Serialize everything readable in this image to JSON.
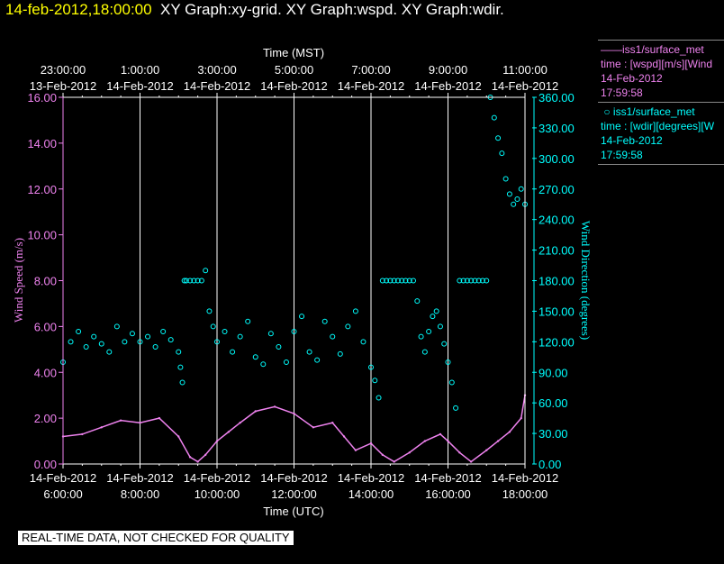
{
  "title": {
    "timestamp": "14-feb-2012,18:00:00",
    "graphs": "XY Graph:xy-grid.  XY Graph:wspd.  XY Graph:wdir."
  },
  "legend": {
    "wspd": {
      "name": "iss1/surface_met",
      "desc": "time : [wspd][m/s][Wind",
      "date": "14-Feb-2012",
      "time": "17:59:58",
      "color": "#ee82ee"
    },
    "wdir": {
      "name": "iss1/surface_met",
      "desc": "time : [wdir][degrees][W",
      "date": "14-Feb-2012",
      "time": "17:59:58",
      "color": "#00ffff"
    }
  },
  "quality_note": "REAL-TIME DATA, NOT CHECKED FOR QUALITY",
  "chart_data": {
    "type": "scatter",
    "top_axis_label": "Time (MST)",
    "bottom_axis_label": "Time (UTC)",
    "ylabel_left": "Wind Speed (m/s)",
    "ylabel_right": "Wind Direction (degrees)",
    "xlim_utc_hours": [
      6,
      18
    ],
    "ylim_left": [
      0,
      16
    ],
    "ylim_right": [
      0,
      360
    ],
    "bottom_ticks": [
      {
        "date": "14-Feb-2012",
        "time": "6:00:00"
      },
      {
        "date": "14-Feb-2012",
        "time": "8:00:00"
      },
      {
        "date": "14-Feb-2012",
        "time": "10:00:00"
      },
      {
        "date": "14-Feb-2012",
        "time": "12:00:00"
      },
      {
        "date": "14-Feb-2012",
        "time": "14:00:00"
      },
      {
        "date": "14-Feb-2012",
        "time": "16:00:00"
      },
      {
        "date": "14-Feb-2012",
        "time": "18:00:00"
      }
    ],
    "top_ticks": [
      {
        "date": "13-Feb-2012",
        "time": "23:00:00"
      },
      {
        "date": "14-Feb-2012",
        "time": "1:00:00"
      },
      {
        "date": "14-Feb-2012",
        "time": "3:00:00"
      },
      {
        "date": "14-Feb-2012",
        "time": "5:00:00"
      },
      {
        "date": "14-Feb-2012",
        "time": "7:00:00"
      },
      {
        "date": "14-Feb-2012",
        "time": "9:00:00"
      },
      {
        "date": "14-Feb-2012",
        "time": "11:00:00"
      }
    ],
    "left_ticks": [
      "0.00",
      "2.00",
      "4.00",
      "6.00",
      "8.00",
      "10.00",
      "12.00",
      "14.00",
      "16.00"
    ],
    "right_ticks": [
      "0.00",
      "30.00",
      "60.00",
      "90.00",
      "120.00",
      "150.00",
      "180.00",
      "210.00",
      "240.00",
      "270.00",
      "300.00",
      "330.00",
      "360.00"
    ],
    "grid": "vertical",
    "series": [
      {
        "name": "wspd",
        "color": "#ee82ee",
        "style": "line",
        "x_utc_hours": [
          6.0,
          6.5,
          7.0,
          7.5,
          8.0,
          8.5,
          9.0,
          9.3,
          9.5,
          9.7,
          10.0,
          10.3,
          10.6,
          11.0,
          11.5,
          12.0,
          12.5,
          13.0,
          13.3,
          13.6,
          14.0,
          14.3,
          14.6,
          15.0,
          15.4,
          15.8,
          16.0,
          16.3,
          16.6,
          17.0,
          17.3,
          17.6,
          17.9,
          18.0
        ],
        "values": [
          1.2,
          1.3,
          1.6,
          1.9,
          1.8,
          2.0,
          1.2,
          0.3,
          0.1,
          0.4,
          1.0,
          1.4,
          1.8,
          2.3,
          2.5,
          2.2,
          1.6,
          1.8,
          1.2,
          0.6,
          0.9,
          0.4,
          0.1,
          0.5,
          1.0,
          1.3,
          1.0,
          0.5,
          0.1,
          0.6,
          1.0,
          1.4,
          2.0,
          3.0
        ]
      },
      {
        "name": "wdir",
        "color": "#00ffff",
        "style": "points",
        "x_utc_hours": [
          6.0,
          6.2,
          6.4,
          6.6,
          6.8,
          7.0,
          7.2,
          7.4,
          7.6,
          7.8,
          8.0,
          8.2,
          8.4,
          8.6,
          8.8,
          9.0,
          9.05,
          9.1,
          9.15,
          9.2,
          9.3,
          9.4,
          9.5,
          9.6,
          9.7,
          9.8,
          9.9,
          10.0,
          10.2,
          10.4,
          10.6,
          10.8,
          11.0,
          11.2,
          11.4,
          11.6,
          11.8,
          12.0,
          12.2,
          12.4,
          12.6,
          12.8,
          13.0,
          13.2,
          13.4,
          13.6,
          13.8,
          14.0,
          14.1,
          14.2,
          14.3,
          14.4,
          14.5,
          14.6,
          14.7,
          14.8,
          14.9,
          15.0,
          15.1,
          15.2,
          15.3,
          15.4,
          15.5,
          15.6,
          15.7,
          15.8,
          15.9,
          16.0,
          16.1,
          16.2,
          16.3,
          16.4,
          16.5,
          16.6,
          16.7,
          16.8,
          16.9,
          17.0,
          17.1,
          17.2,
          17.3,
          17.4,
          17.5,
          17.6,
          17.7,
          17.8,
          17.9,
          18.0
        ],
        "values": [
          100,
          120,
          130,
          115,
          125,
          118,
          110,
          135,
          120,
          128,
          120,
          125,
          115,
          130,
          122,
          110,
          95,
          80,
          180,
          180,
          180,
          180,
          180,
          180,
          190,
          150,
          135,
          120,
          130,
          110,
          125,
          140,
          105,
          98,
          128,
          115,
          100,
          130,
          145,
          110,
          102,
          140,
          125,
          108,
          135,
          150,
          120,
          95,
          82,
          65,
          180,
          180,
          180,
          180,
          180,
          180,
          180,
          180,
          180,
          160,
          125,
          110,
          130,
          145,
          150,
          135,
          118,
          100,
          80,
          55,
          180,
          180,
          180,
          180,
          180,
          180,
          180,
          180,
          360,
          340,
          320,
          305,
          280,
          265,
          255,
          260,
          270,
          255
        ]
      }
    ]
  }
}
